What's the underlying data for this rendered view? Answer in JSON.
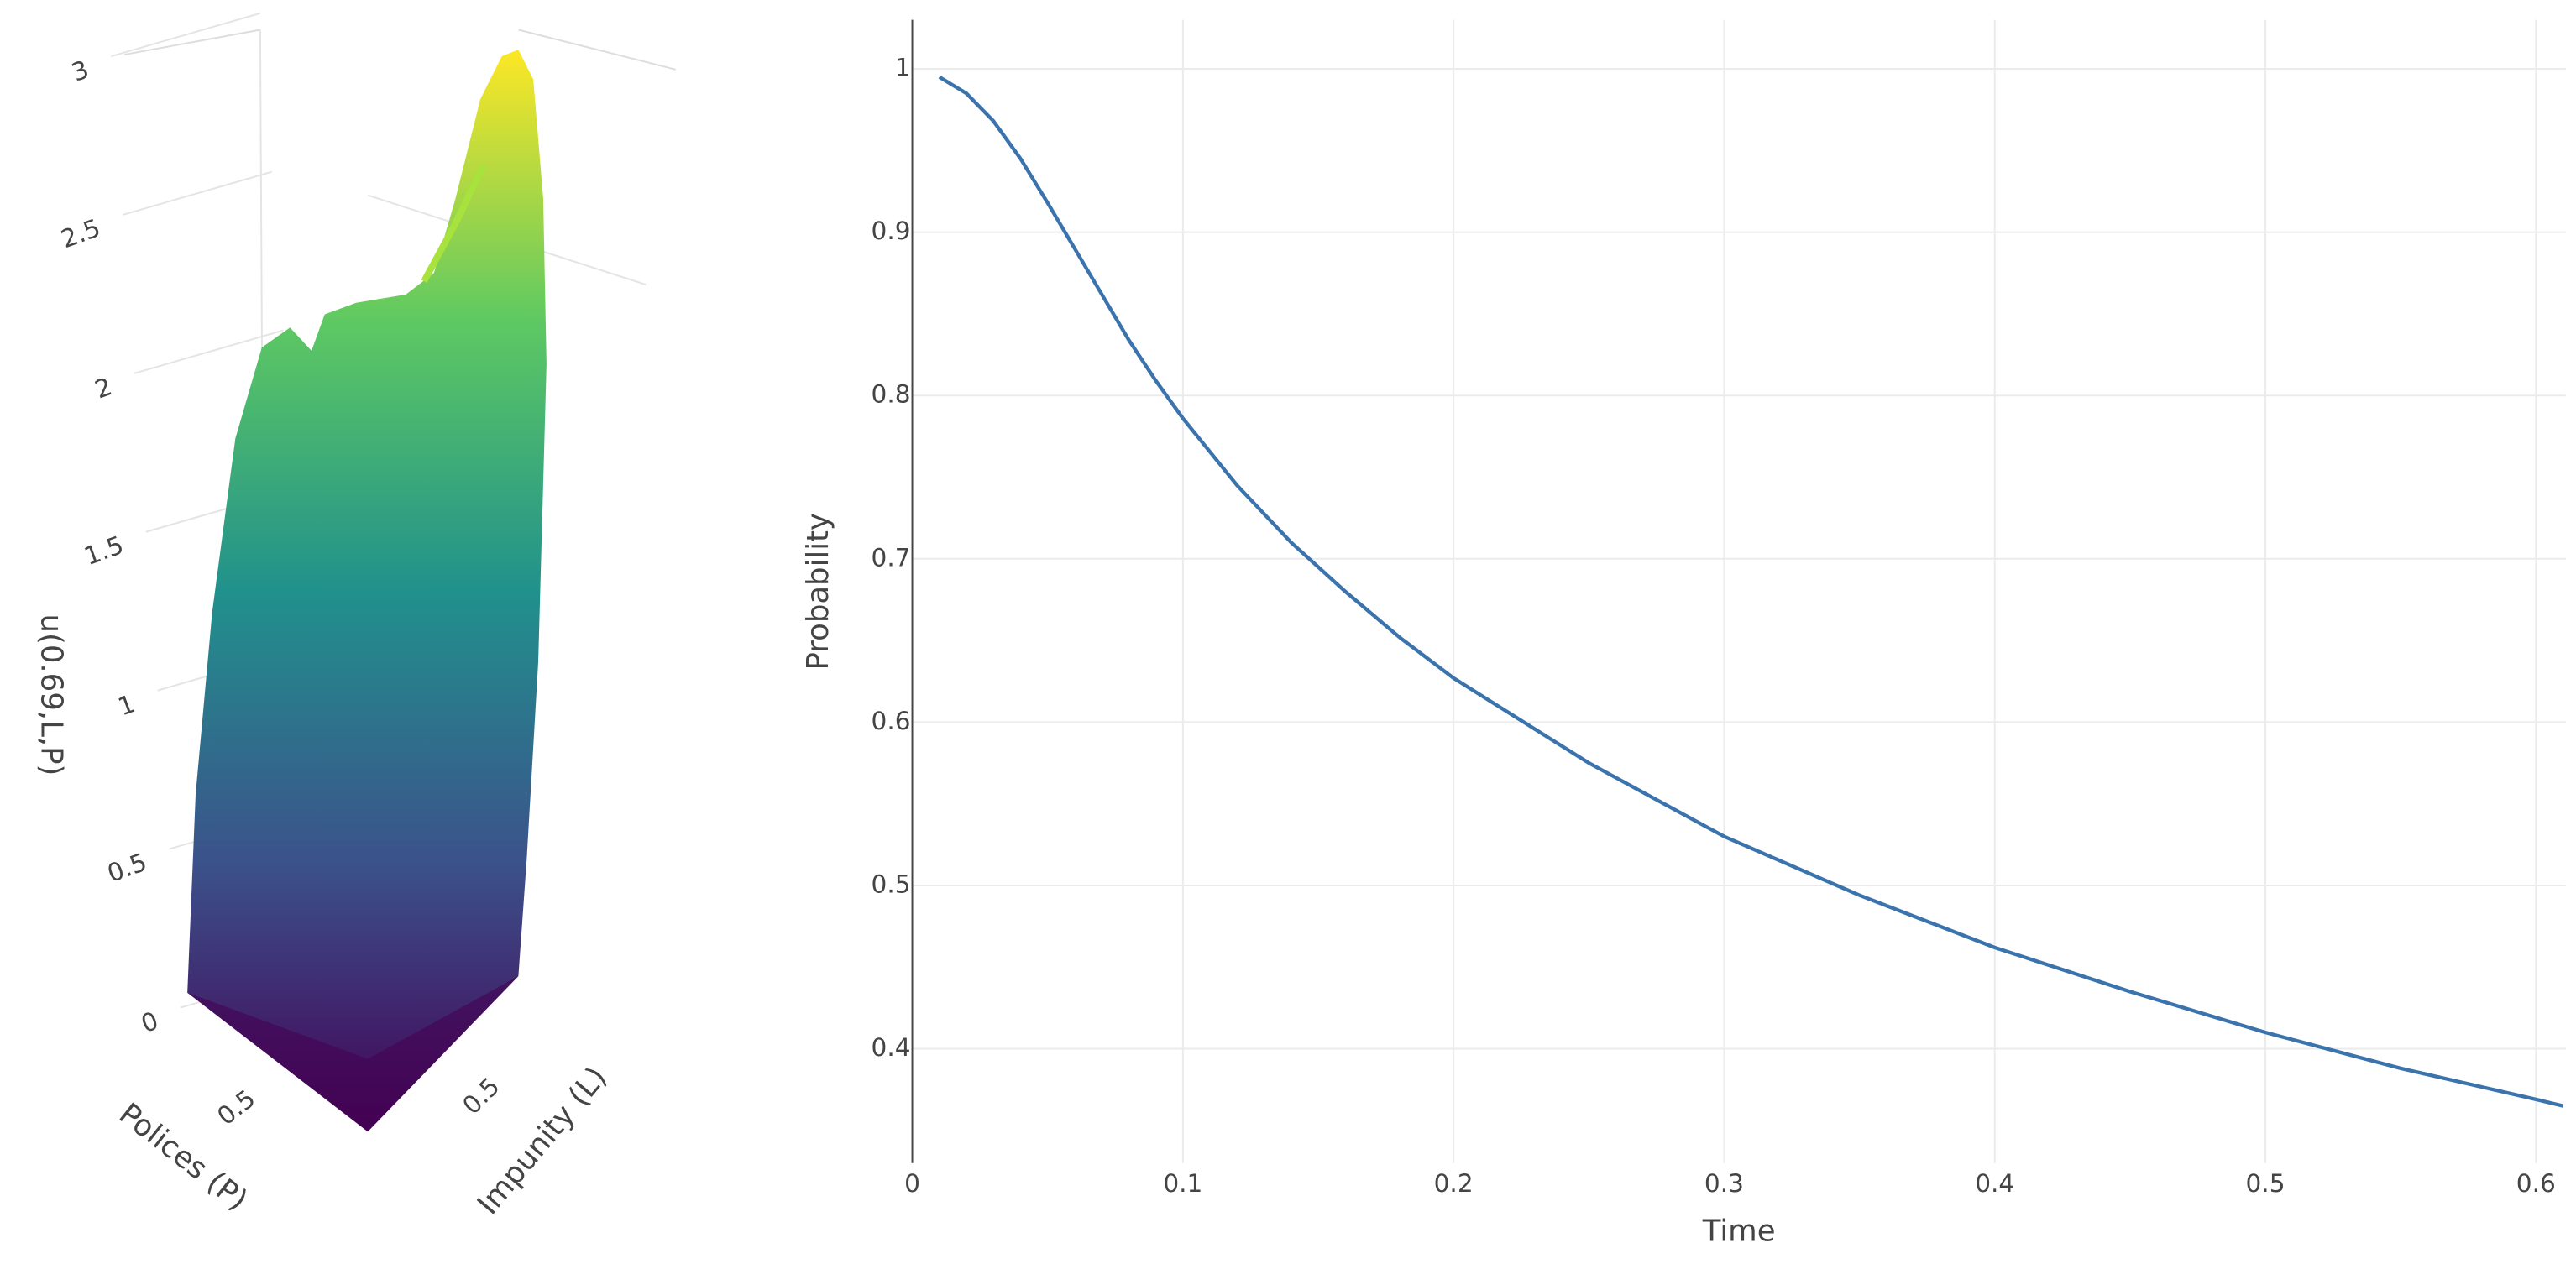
{
  "chart_data": [
    {
      "type": "surface3d",
      "zaxis_title": "u(0.69,L,P)",
      "xaxis_title": "Polices (P)",
      "yaxis_title": "Impunity (L)",
      "zlim": [
        0,
        3
      ],
      "zticks": [
        0,
        0.5,
        1,
        1.5,
        2,
        2.5,
        3
      ],
      "xticks": [
        0.5
      ],
      "yticks": [
        0.5
      ],
      "colorscale": "Viridis"
    },
    {
      "type": "line",
      "xaxis_title": "Time",
      "yaxis_title": "Probability",
      "color": "#3b73ad",
      "x": [
        0.01,
        0.02,
        0.03,
        0.04,
        0.05,
        0.06,
        0.07,
        0.08,
        0.09,
        0.1,
        0.12,
        0.14,
        0.16,
        0.18,
        0.2,
        0.25,
        0.3,
        0.35,
        0.4,
        0.45,
        0.5,
        0.55,
        0.6,
        0.61
      ],
      "values": [
        0.995,
        0.985,
        0.968,
        0.945,
        0.918,
        0.89,
        0.862,
        0.834,
        0.809,
        0.786,
        0.745,
        0.71,
        0.68,
        0.652,
        0.627,
        0.575,
        0.53,
        0.494,
        0.462,
        0.435,
        0.41,
        0.388,
        0.369,
        0.365
      ],
      "xlim": [
        0,
        0.611
      ],
      "ylim": [
        0.33,
        1.03
      ],
      "xticks": [
        0,
        0.1,
        0.2,
        0.3,
        0.4,
        0.5,
        0.6
      ],
      "yticks": [
        0.4,
        0.5,
        0.6,
        0.7,
        0.8,
        0.9,
        1
      ],
      "grid": true
    }
  ]
}
